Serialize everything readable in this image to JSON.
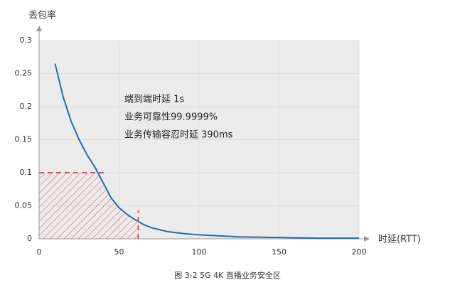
{
  "chart_data": {
    "type": "line",
    "y_axis_title": "丢包率",
    "x_axis_title": "时延(RTT)",
    "caption": "图 3-2 5G 4K 直播业务安全区",
    "annotations": [
      "端到端时延 1s",
      "业务可靠性99.9999%",
      "业务传输容忍时延 390ms"
    ],
    "x": [
      10,
      15,
      20,
      25,
      30,
      35,
      40,
      45,
      50,
      55,
      60,
      65,
      70,
      80,
      90,
      100,
      125,
      150,
      175,
      200
    ],
    "series": [
      {
        "color": "#1f6fb0",
        "values": [
          0.265,
          0.215,
          0.178,
          0.15,
          0.127,
          0.108,
          0.085,
          0.062,
          0.047,
          0.037,
          0.029,
          0.022,
          0.017,
          0.011,
          0.008,
          0.006,
          0.003,
          0.002,
          0.001,
          0.001
        ]
      }
    ],
    "thresholds": {
      "x": 62,
      "y": 0.1,
      "color": "#e0505a"
    },
    "xlim": [
      0,
      200
    ],
    "xticks": [
      0,
      50,
      100,
      150,
      200
    ],
    "ylim": [
      0,
      0.3
    ],
    "yticks": [
      0,
      0.05,
      0.1,
      0.15,
      0.2,
      0.25,
      0.3
    ],
    "grid": true
  }
}
